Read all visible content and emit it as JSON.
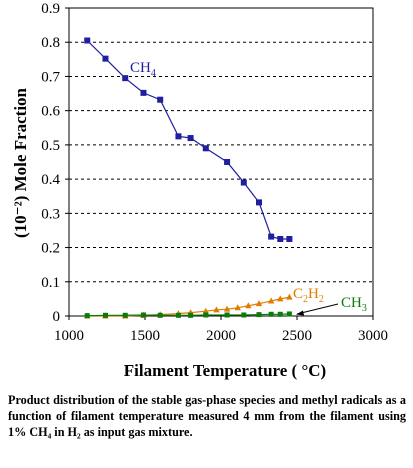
{
  "chart_data": {
    "type": "line",
    "xlabel": "Filament Temperature ( °C)",
    "ylabel": "(10⁻²) Mole Fraction",
    "xlim": [
      1000,
      3000
    ],
    "ylim": [
      0,
      0.9
    ],
    "x_ticks": [
      "1000",
      "1500",
      "2000",
      "2500",
      "3000"
    ],
    "y_ticks": [
      "0",
      "0.1",
      "0.2",
      "0.3",
      "0.4",
      "0.5",
      "0.6",
      "0.7",
      "0.8",
      "0.9"
    ],
    "grid": "horizontal-dashed",
    "colors": {
      "ch4": "#1f1f9f",
      "c2h2": "#e07b00",
      "ch3": "#0a7a0a"
    },
    "series": [
      {
        "name": "CH4",
        "marker": "square",
        "points": [
          [
            1120,
            0.805
          ],
          [
            1240,
            0.752
          ],
          [
            1370,
            0.695
          ],
          [
            1490,
            0.652
          ],
          [
            1600,
            0.632
          ],
          [
            1720,
            0.525
          ],
          [
            1800,
            0.52
          ],
          [
            1900,
            0.49
          ],
          [
            2040,
            0.45
          ],
          [
            2150,
            0.39
          ],
          [
            2250,
            0.332
          ],
          [
            2330,
            0.232
          ],
          [
            2390,
            0.225
          ],
          [
            2450,
            0.225
          ]
        ]
      },
      {
        "name": "C2H2",
        "marker": "triangle",
        "points": [
          [
            1120,
            0.0
          ],
          [
            1240,
            0.0
          ],
          [
            1370,
            0.0
          ],
          [
            1490,
            0.002
          ],
          [
            1600,
            0.004
          ],
          [
            1720,
            0.007
          ],
          [
            1800,
            0.01
          ],
          [
            1900,
            0.014
          ],
          [
            1970,
            0.018
          ],
          [
            2040,
            0.02
          ],
          [
            2110,
            0.024
          ],
          [
            2180,
            0.03
          ],
          [
            2250,
            0.036
          ],
          [
            2330,
            0.044
          ],
          [
            2390,
            0.05
          ],
          [
            2450,
            0.055
          ]
        ]
      },
      {
        "name": "CH3",
        "marker": "square",
        "points": [
          [
            1120,
            0.001
          ],
          [
            1240,
            0.002
          ],
          [
            1370,
            0.002
          ],
          [
            1490,
            0.003
          ],
          [
            1600,
            0.002
          ],
          [
            1720,
            0.002
          ],
          [
            1800,
            0.002
          ],
          [
            1900,
            0.003
          ],
          [
            2040,
            0.003
          ],
          [
            2150,
            0.003
          ],
          [
            2250,
            0.004
          ],
          [
            2330,
            0.005
          ],
          [
            2390,
            0.005
          ],
          [
            2450,
            0.006
          ]
        ]
      }
    ],
    "labels": {
      "ch4": {
        "text": "CH",
        "sub": "4"
      },
      "c2h2": {
        "text": "C",
        "sub1": "2",
        "mid": "H",
        "sub2": "2"
      },
      "ch3": {
        "text": "CH",
        "sub": "3"
      }
    }
  },
  "caption": "Product distribution of the stable gas-phase species and methyl radicals as a function of filament temperature measured 4 mm from the filament using 1% CH₄ in H₂ as input gas mixture."
}
